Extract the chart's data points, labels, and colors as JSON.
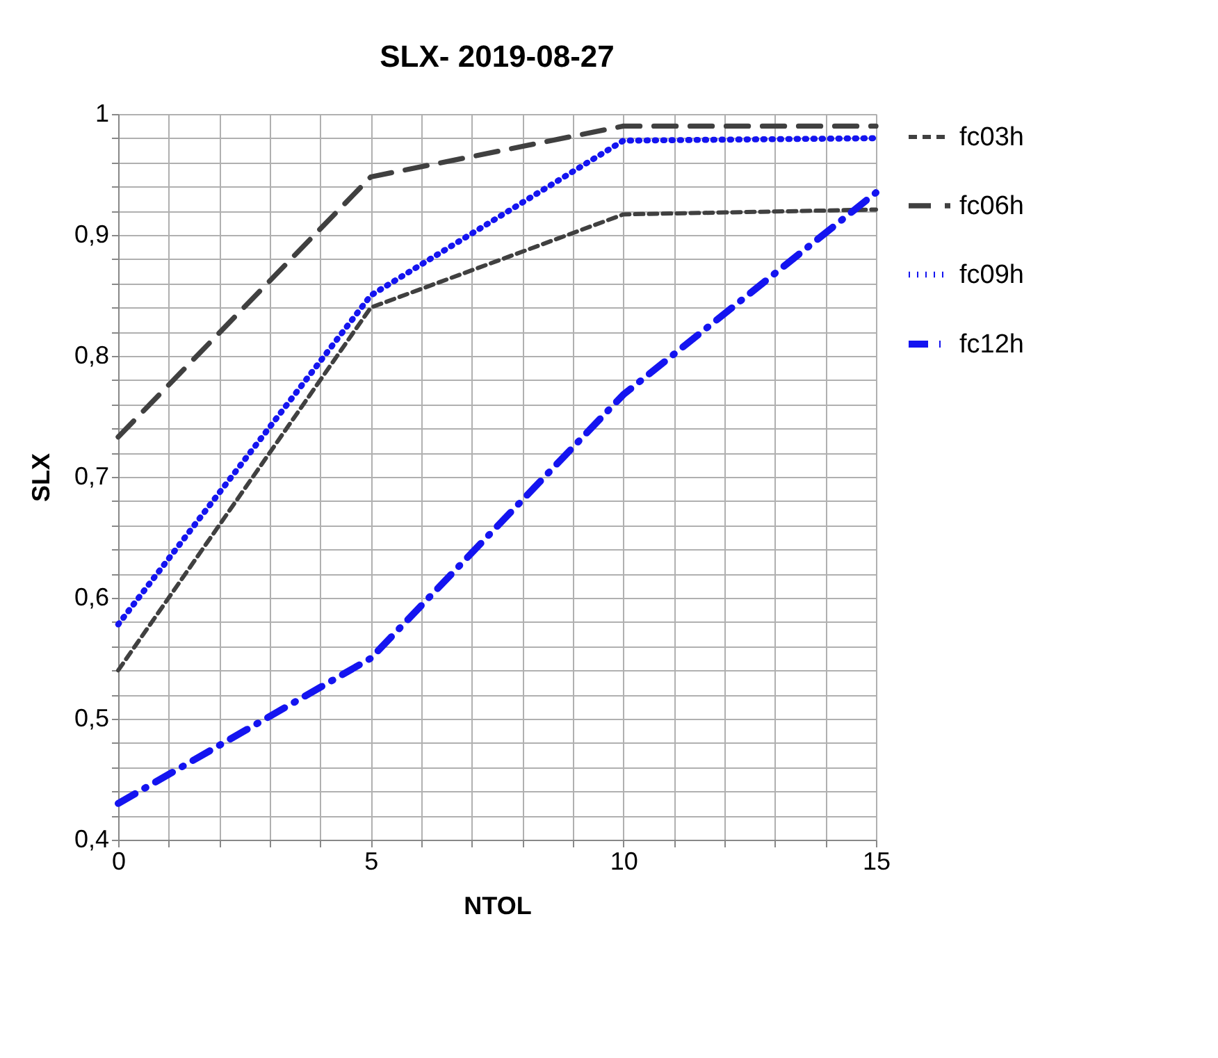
{
  "chart_data": {
    "type": "line",
    "title": "SLX- 2019-08-27",
    "xlabel": "NTOL",
    "ylabel": "SLX",
    "x": [
      0,
      5,
      10,
      15
    ],
    "series": [
      {
        "name": "fc03h",
        "color": "#404040",
        "line_style": "dashed",
        "values": [
          0.54,
          0.84,
          0.917,
          0.921
        ]
      },
      {
        "name": "fc06h",
        "color": "#404040",
        "line_style": "dashed",
        "values": [
          0.733,
          0.948,
          0.99,
          0.99
        ]
      },
      {
        "name": "fc09h",
        "color": "#1414f0",
        "line_style": "dotted",
        "values": [
          0.578,
          0.85,
          0.978,
          0.98
        ]
      },
      {
        "name": "fc12h",
        "color": "#1414f0",
        "line_style": "dashdot",
        "values": [
          0.43,
          0.55,
          0.768,
          0.935
        ]
      }
    ],
    "xlim": [
      0,
      15
    ],
    "xticks": [
      0,
      {
        "value": 1,
        "label": null
      },
      {
        "value": 2,
        "label": null
      },
      {
        "value": 3,
        "label": null
      },
      {
        "value": 4,
        "label": null
      },
      5,
      {
        "value": 6,
        "label": null
      },
      {
        "value": 7,
        "label": null
      },
      {
        "value": 8,
        "label": null
      },
      {
        "value": 9,
        "label": null
      },
      10,
      {
        "value": 11,
        "label": null
      },
      {
        "value": 12,
        "label": null
      },
      {
        "value": 13,
        "label": null
      },
      {
        "value": 14,
        "label": null
      },
      15
    ],
    "ylim": [
      0.4,
      1
    ],
    "yticks": [
      {
        "value": 0.4,
        "label": "0,4"
      },
      {
        "value": 0.42,
        "label": null
      },
      {
        "value": 0.44,
        "label": null
      },
      {
        "value": 0.46,
        "label": null
      },
      {
        "value": 0.48,
        "label": null
      },
      {
        "value": 0.5,
        "label": "0,5"
      },
      {
        "value": 0.52,
        "label": null
      },
      {
        "value": 0.54,
        "label": null
      },
      {
        "value": 0.56,
        "label": null
      },
      {
        "value": 0.58,
        "label": null
      },
      {
        "value": 0.6,
        "label": "0,6"
      },
      {
        "value": 0.62,
        "label": null
      },
      {
        "value": 0.64,
        "label": null
      },
      {
        "value": 0.66,
        "label": null
      },
      {
        "value": 0.68,
        "label": null
      },
      {
        "value": 0.7,
        "label": "0,7"
      },
      {
        "value": 0.72,
        "label": null
      },
      {
        "value": 0.74,
        "label": null
      },
      {
        "value": 0.76,
        "label": null
      },
      {
        "value": 0.78,
        "label": null
      },
      {
        "value": 0.8,
        "label": "0,8"
      },
      {
        "value": 0.82,
        "label": null
      },
      {
        "value": 0.84,
        "label": null
      },
      {
        "value": 0.86,
        "label": null
      },
      {
        "value": 0.88,
        "label": null
      },
      {
        "value": 0.9,
        "label": "0,9"
      },
      {
        "value": 0.92,
        "label": null
      },
      {
        "value": 0.94,
        "label": null
      },
      {
        "value": 0.96,
        "label": null
      },
      {
        "value": 0.98,
        "label": null
      },
      1
    ],
    "grid": true,
    "legend": "right",
    "marker": "none"
  }
}
